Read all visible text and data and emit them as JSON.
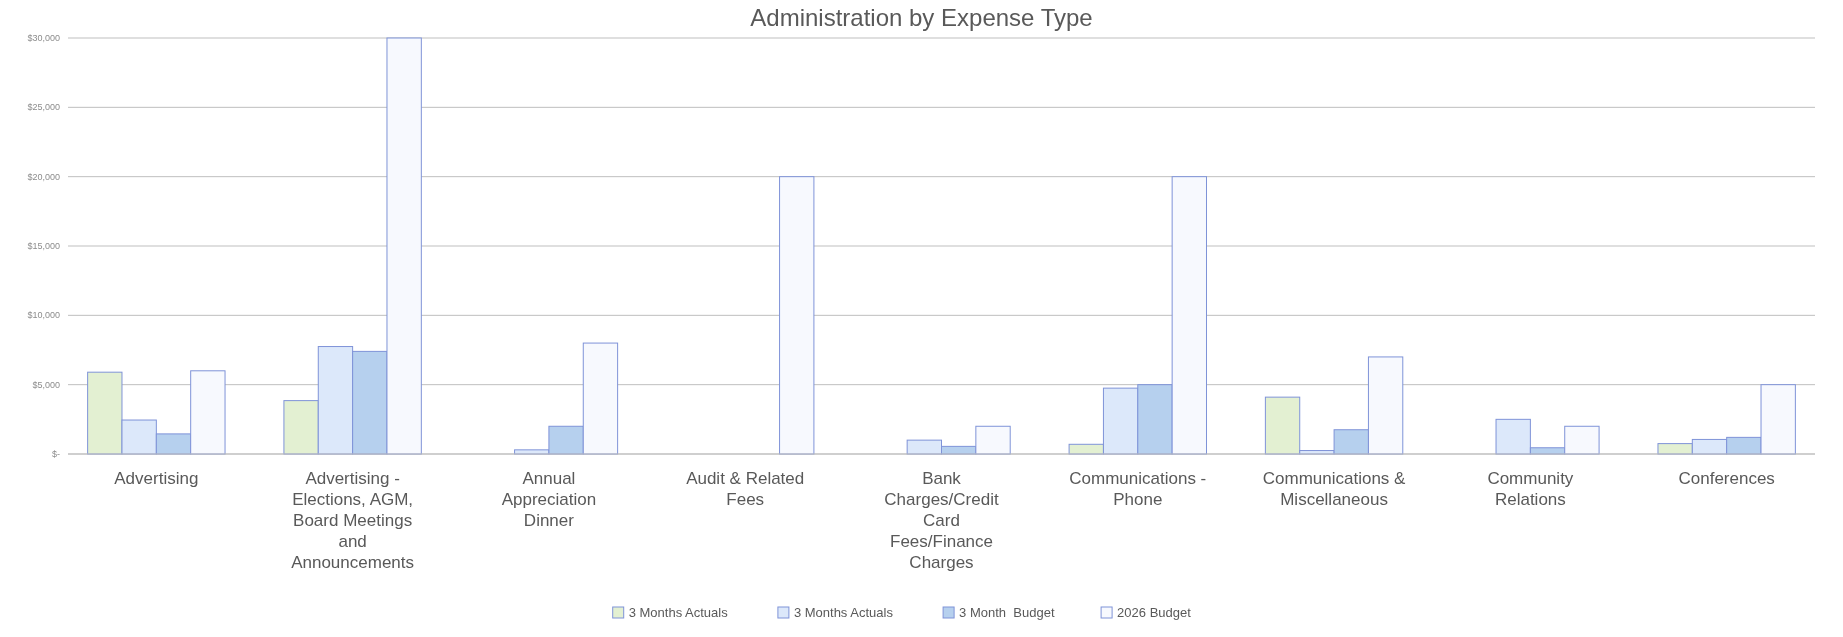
{
  "chart_data": {
    "type": "bar",
    "title": "Administration by Expense Type",
    "categories": [
      "Advertising",
      "Advertising - Elections, AGM, Board Meetings and Announcements",
      "Annual Appreciation Dinner",
      "Audit & Related Fees",
      "Bank Charges/Credit Card Fees/Finance Charges",
      "Communications - Phone",
      "Communications & Miscellaneous",
      "Community Relations",
      "Conferences"
    ],
    "series": [
      {
        "name": "3 Months Actuals",
        "color": "#e3f0d2",
        "values": [
          5900,
          3850,
          0,
          0,
          0,
          700,
          4100,
          0,
          750
        ]
      },
      {
        "name": "3 Months Actuals",
        "color": "#dce8fa",
        "values": [
          2450,
          7750,
          300,
          0,
          1000,
          4750,
          250,
          2500,
          1050
        ]
      },
      {
        "name": "3 Month  Budget",
        "color": "#b6d0ee",
        "values": [
          1450,
          7400,
          2000,
          0,
          550,
          5000,
          1750,
          450,
          1200
        ]
      },
      {
        "name": "2026 Budget",
        "color": "#f7f9fe",
        "values": [
          6000,
          30000,
          8000,
          20000,
          2000,
          20000,
          7000,
          2000,
          5000
        ]
      }
    ],
    "ylim": [
      0,
      30000
    ],
    "yticks": [
      {
        "value": 0,
        "label": "$-"
      },
      {
        "value": 5000,
        "label": "$5,000"
      },
      {
        "value": 10000,
        "label": "$10,000"
      },
      {
        "value": 15000,
        "label": "$15,000"
      },
      {
        "value": 20000,
        "label": "$20,000"
      },
      {
        "value": 25000,
        "label": "$25,000"
      },
      {
        "value": 30000,
        "label": "$30,000"
      }
    ],
    "grid": "y",
    "legend": "bottom"
  }
}
